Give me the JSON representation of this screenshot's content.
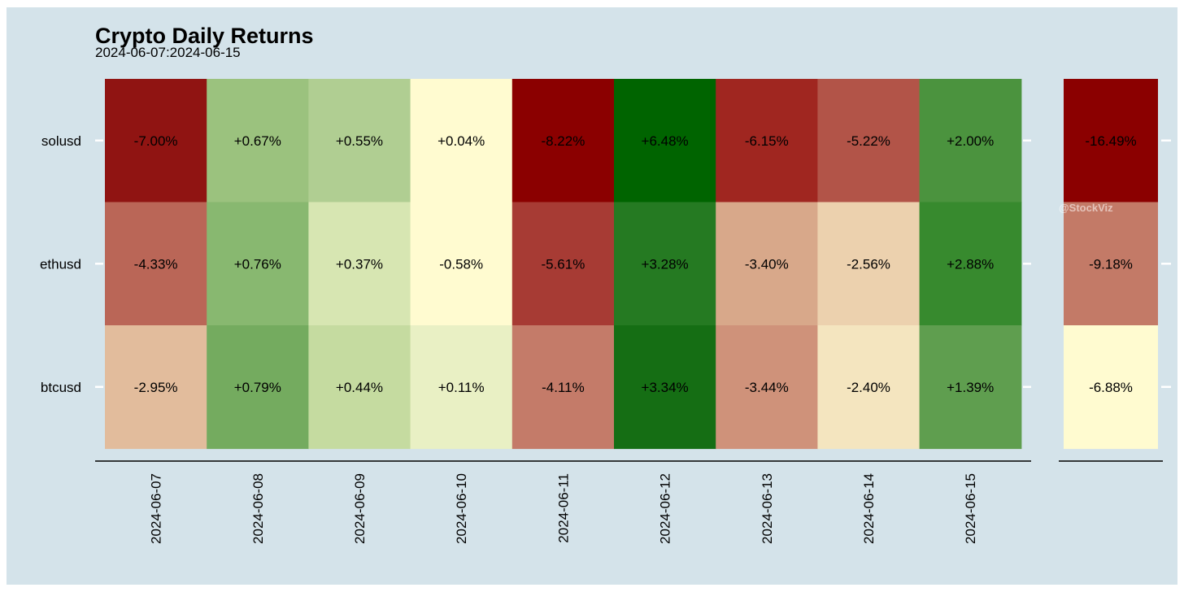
{
  "chart_data": {
    "type": "heatmap",
    "title": "Crypto Daily Returns",
    "subtitle": "2024-06-07:2024-06-15",
    "watermark": "@StockViz",
    "rows": [
      "solusd",
      "ethusd",
      "btcusd"
    ],
    "columns": [
      "2024-06-07",
      "2024-06-08",
      "2024-06-09",
      "2024-06-10",
      "2024-06-11",
      "2024-06-12",
      "2024-06-13",
      "2024-06-14",
      "2024-06-15"
    ],
    "values": [
      [
        -7.0,
        0.67,
        0.55,
        0.04,
        -8.22,
        6.48,
        -6.15,
        -5.22,
        2.0
      ],
      [
        -4.33,
        0.76,
        0.37,
        -0.58,
        -5.61,
        3.28,
        -3.4,
        -2.56,
        2.88
      ],
      [
        -2.95,
        0.79,
        0.44,
        0.11,
        -4.11,
        3.34,
        -3.44,
        -2.4,
        1.39
      ]
    ],
    "labels": [
      [
        "-7.00%",
        "+0.67%",
        "+0.55%",
        "+0.04%",
        "-8.22%",
        "+6.48%",
        "-6.15%",
        "-5.22%",
        "+2.00%"
      ],
      [
        "-4.33%",
        "+0.76%",
        "+0.37%",
        "-0.58%",
        "-5.61%",
        "+3.28%",
        "-3.40%",
        "-2.56%",
        "+2.88%"
      ],
      [
        "-2.95%",
        "+0.79%",
        "+0.44%",
        "+0.11%",
        "-4.11%",
        "+3.34%",
        "-3.44%",
        "-2.40%",
        "+1.39%"
      ]
    ],
    "cell_colors": [
      [
        "#901412",
        "#9bc27e",
        "#b0ce92",
        "#fffbd0",
        "#8b0000",
        "#006400",
        "#a02620",
        "#b25448",
        "#4b933e"
      ],
      [
        "#ba6657",
        "#88b870",
        "#d7e6b2",
        "#fffbd0",
        "#a73b34",
        "#257a22",
        "#d8a88a",
        "#ecd1ae",
        "#378a2e"
      ],
      [
        "#e2bc9c",
        "#74ab5f",
        "#c5dba0",
        "#e9f0c4",
        "#c47b69",
        "#156e14",
        "#cf927a",
        "#f4e5bf",
        "#5f9e4f"
      ]
    ],
    "total": {
      "values": [
        -16.49,
        -9.18,
        -6.88
      ],
      "labels": [
        "-16.49%",
        "-9.18%",
        "-6.88%"
      ],
      "cell_colors": [
        "#8b0000",
        "#c37a67",
        "#fffbd0"
      ]
    },
    "background": "#d4e3ea",
    "color_scale": {
      "negative": "#8b0000",
      "neutral": "#fffbd0",
      "positive": "#006400"
    }
  }
}
